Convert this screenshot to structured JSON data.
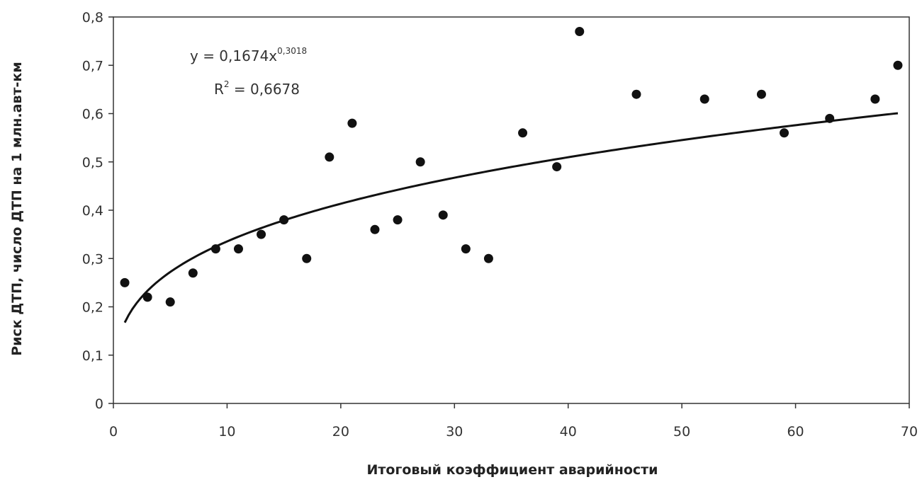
{
  "chart_data": {
    "type": "scatter",
    "xlabel": "Итоговый коэффициент  аварийности",
    "ylabel": "Риск ДТП, число ДТП на 1 млн.авт-км",
    "xlim": [
      0,
      70
    ],
    "ylim": [
      0,
      0.8
    ],
    "x_ticks": [
      0,
      10,
      20,
      30,
      40,
      50,
      60,
      70
    ],
    "y_ticks": [
      0,
      0.1,
      0.2,
      0.3,
      0.4,
      0.5,
      0.6,
      0.7,
      0.8
    ],
    "x_tick_labels": [
      "0",
      "10",
      "20",
      "30",
      "40",
      "50",
      "60",
      "70"
    ],
    "y_tick_labels": [
      "0",
      "0,1",
      "0,2",
      "0,3",
      "0,4",
      "0,5",
      "0,6",
      "0,7",
      "0,8"
    ],
    "grid": false,
    "points": {
      "x": [
        1,
        3,
        5,
        7,
        9,
        11,
        13,
        15,
        17,
        19,
        21,
        23,
        25,
        27,
        29,
        31,
        33,
        36,
        39,
        41,
        46,
        52,
        57,
        59,
        63,
        67,
        69
      ],
      "y": [
        0.25,
        0.22,
        0.21,
        0.27,
        0.32,
        0.32,
        0.35,
        0.38,
        0.3,
        0.51,
        0.58,
        0.36,
        0.38,
        0.5,
        0.39,
        0.32,
        0.3,
        0.56,
        0.49,
        0.77,
        0.64,
        0.63,
        0.64,
        0.56,
        0.59,
        0.63,
        0.7
      ]
    },
    "trendline": {
      "type": "power",
      "coefficient": 0.1674,
      "exponent": 0.3018,
      "x_range": [
        1,
        69
      ],
      "equation_prefix": "y = 0,1674x",
      "equation_exponent": "0,3018",
      "r2_prefix": "R",
      "r2_sup": "2",
      "r2_value": " = 0,6678"
    },
    "colors": {
      "points": "#111111",
      "trendline": "#111111",
      "axes": "#333333"
    }
  }
}
